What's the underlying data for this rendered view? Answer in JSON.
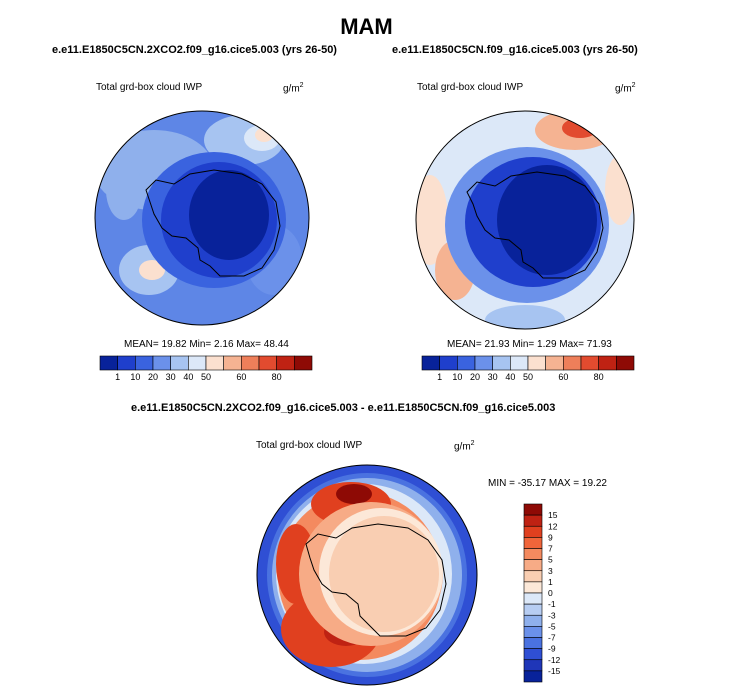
{
  "figure_title": "MAM",
  "chart_data": [
    {
      "type": "heatmap",
      "projection": "south-polar stereographic",
      "title": "e.e11.E1850C5CN.2XCO2.f09_g16.cice5.003 (yrs 26-50)",
      "variable": "Total grd-box cloud IWP",
      "units": "g/m",
      "units_sup": "2",
      "stats_text": "MEAN= 19.82  Min=  2.16  Max= 48.44",
      "stats": {
        "mean": 19.82,
        "min": 2.16,
        "max": 48.44
      },
      "colorbar": {
        "levels": [
          "1",
          "10",
          "20",
          "30",
          "40",
          "50",
          "60",
          "80"
        ],
        "colors": [
          "#08229a",
          "#1f3fcc",
          "#3a63df",
          "#6b91ea",
          "#a7c4f1",
          "#dce8f8",
          "#fbe0cf",
          "#f5b392",
          "#ee7f5a",
          "#e24b2f",
          "#bf2213",
          "#8e0a05"
        ]
      }
    },
    {
      "type": "heatmap",
      "projection": "south-polar stereographic",
      "title": "e.e11.E1850C5CN.f09_g16.cice5.003 (yrs 26-50)",
      "variable": "Total grd-box cloud IWP",
      "units": "g/m",
      "units_sup": "2",
      "stats_text": "MEAN= 21.93  Min=  1.29  Max= 71.93",
      "stats": {
        "mean": 21.93,
        "min": 1.29,
        "max": 71.93
      },
      "colorbar": {
        "levels": [
          "1",
          "10",
          "20",
          "30",
          "40",
          "50",
          "60",
          "80"
        ],
        "colors": [
          "#08229a",
          "#1f3fcc",
          "#3a63df",
          "#6b91ea",
          "#a7c4f1",
          "#dce8f8",
          "#fbe0cf",
          "#f5b392",
          "#ee7f5a",
          "#e24b2f",
          "#bf2213",
          "#8e0a05"
        ]
      }
    },
    {
      "type": "heatmap",
      "projection": "south-polar stereographic",
      "title": "e.e11.E1850C5CN.2XCO2.f09_g16.cice5.003 - e.e11.E1850C5CN.f09_g16.cice5.003",
      "variable": "Total grd-box cloud IWP",
      "units": "g/m",
      "units_sup": "2",
      "stats_text": "MIN = -35.17 MAX =  19.22",
      "stats": {
        "min": -35.17,
        "max": 19.22
      },
      "colorbar": {
        "levels": [
          "15",
          "12",
          "9",
          "7",
          "5",
          "3",
          "1",
          "0",
          "-1",
          "-3",
          "-5",
          "-7",
          "-9",
          "-12",
          "-15"
        ],
        "colors": [
          "#8e0a05",
          "#bf2213",
          "#e0401f",
          "#f0653a",
          "#f48a5f",
          "#f7ab86",
          "#f9ceb2",
          "#fce8d8",
          "#dce8f8",
          "#b7cdf2",
          "#8fb0ec",
          "#6b91ea",
          "#4a72e0",
          "#2f4fd4",
          "#1f36b8",
          "#08229a"
        ]
      }
    }
  ]
}
